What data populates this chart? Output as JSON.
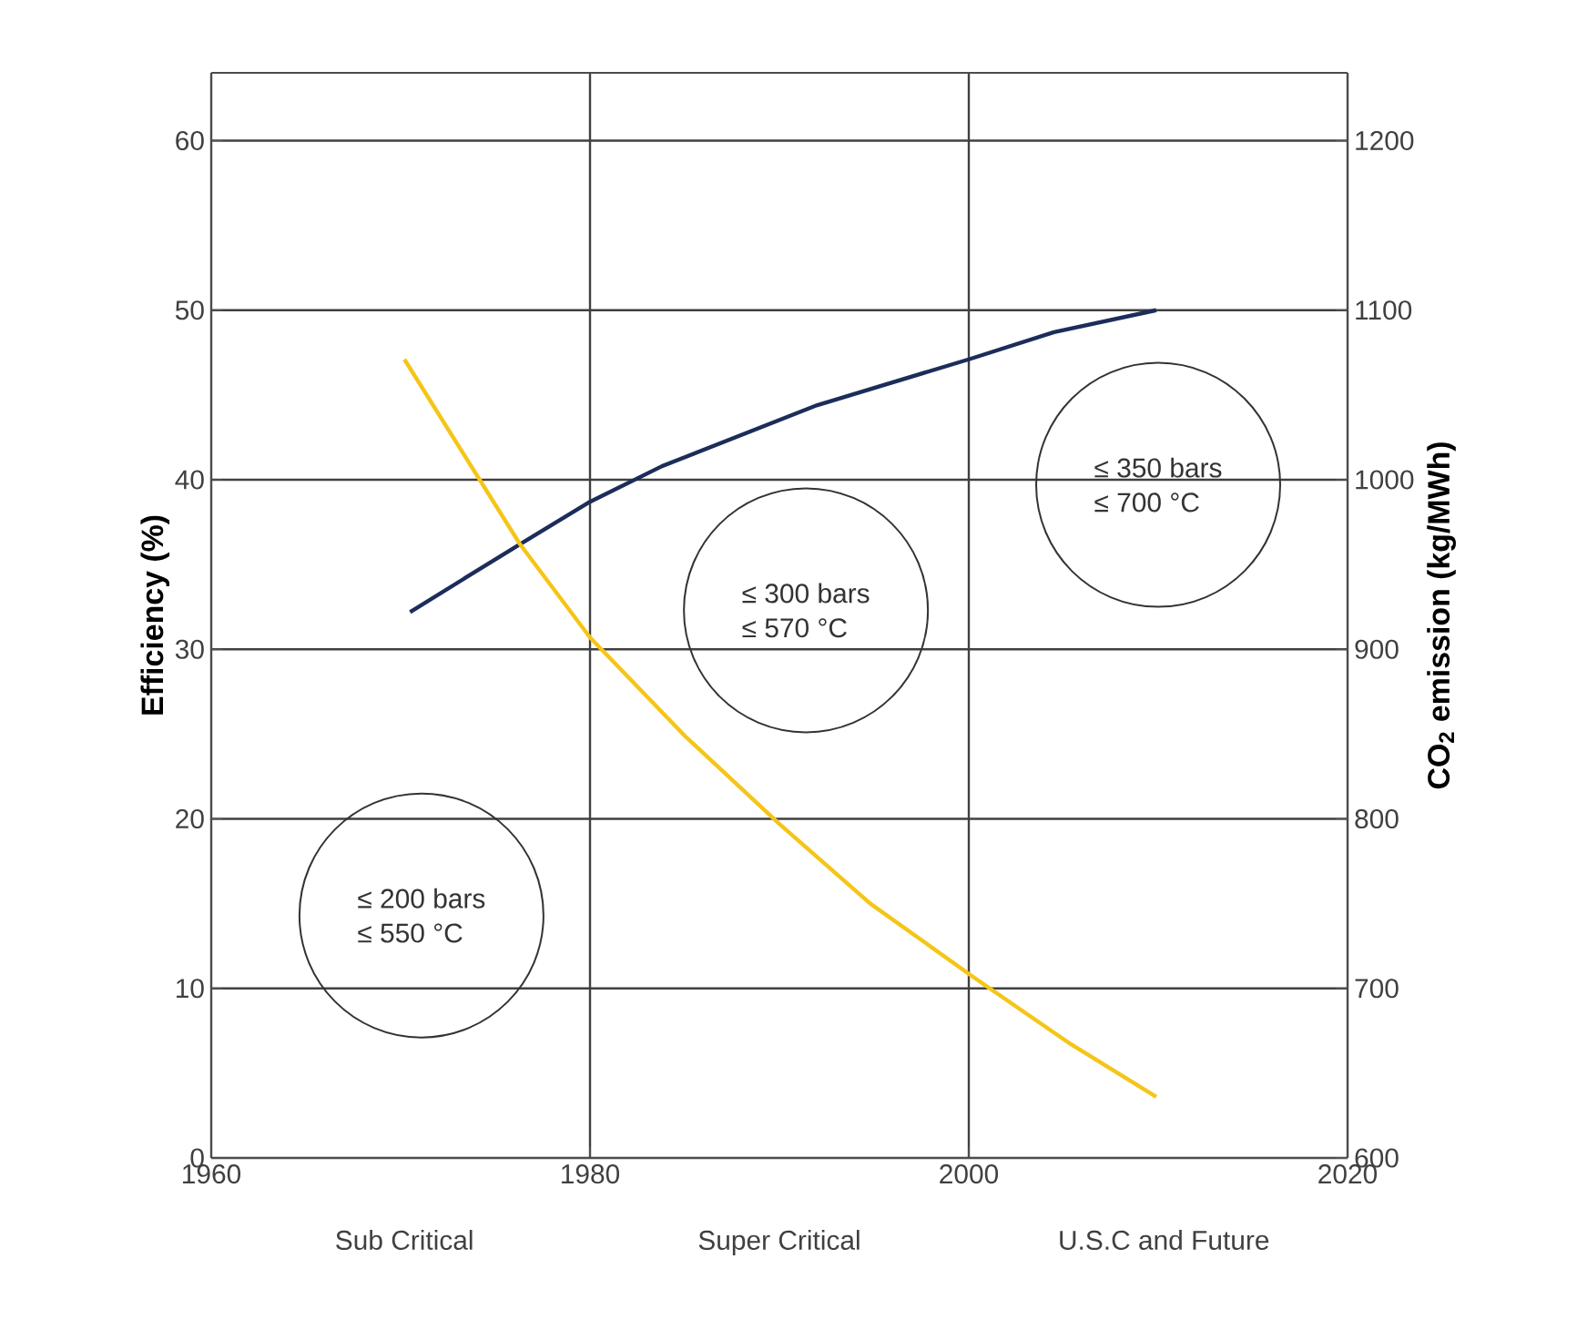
{
  "chart_data": {
    "type": "line",
    "xlabel": null,
    "ylabel": "Efficiency (%)",
    "y2label": "CO$_{2}$ emission (kg/MWh)",
    "series": [
      {
        "color": "#1c2d5a",
        "x": [
          1970.5,
          1976.3,
          1980,
          1983.8,
          1992,
          2000,
          2004.5,
          2009.9
        ],
        "values": [
          32.2,
          36.2,
          38.7,
          40.8,
          44.4,
          47.1,
          48.7,
          50.0
        ]
      },
      {
        "color": "#f5c518",
        "axis": "y2",
        "x": [
          1970.2,
          1976.3,
          1980,
          1985,
          1990,
          1994.8,
          2000.2,
          2005.4,
          2009.9
        ],
        "values": [
          1071,
          962,
          907,
          849,
          797,
          750,
          707,
          667,
          636
        ]
      }
    ],
    "xlim": [
      1960,
      2020
    ],
    "xticks": [
      1960,
      1980,
      2000,
      2020
    ],
    "ylim": [
      0,
      64
    ],
    "yticks": [
      0,
      10,
      20,
      30,
      40,
      50,
      60
    ],
    "y2lim": [
      600,
      1240
    ],
    "y2ticks": [
      600,
      700,
      800,
      900,
      1000,
      1100,
      1200
    ],
    "grid": true,
    "marker": "none",
    "line_style": "solid",
    "annotations": [
      "≤ 200 bars",
      "≤ 550 °C",
      "≤ 300 bars",
      "≤ 570 °C",
      "≤ 350 bars",
      "≤ 700 °C",
      "Sub Critical",
      "Super Critical",
      "U.S.C and Future"
    ]
  }
}
